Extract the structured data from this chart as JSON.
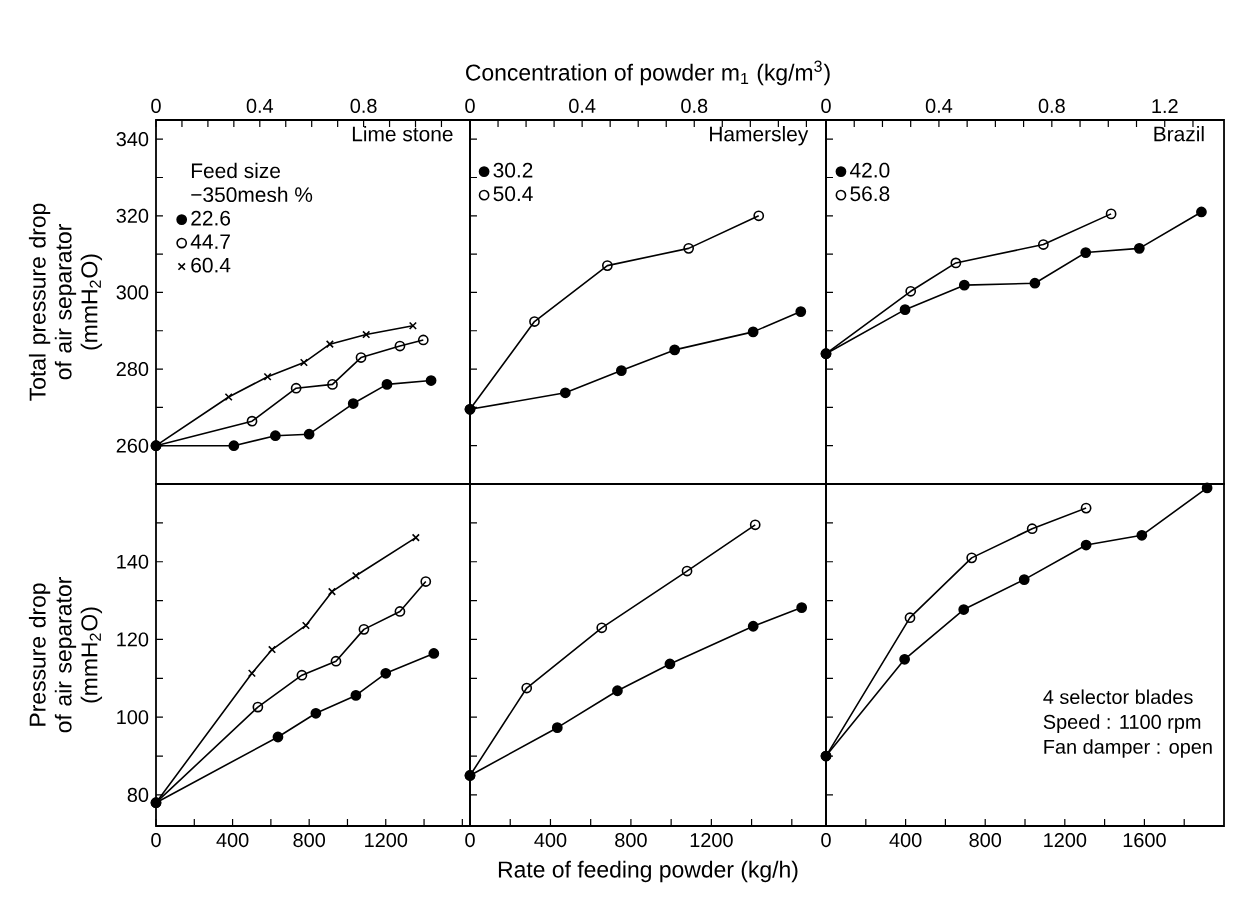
{
  "chart_data": [
    {
      "type": "line",
      "title": "Lime stone",
      "ylabel": "Total pressure drop of air separator (mmH$_{2}$O)",
      "legend_title": "Feed size −350mesh %",
      "legend": "top left",
      "xlim": [
        0,
        1.21
      ],
      "xticks": [
        0,
        {
          "value": 0.1,
          "label": null
        },
        {
          "value": 0.2,
          "label": null
        },
        {
          "value": 0.3,
          "label": null
        },
        0.4,
        {
          "value": 0.5,
          "label": null
        },
        {
          "value": 0.6,
          "label": null
        },
        {
          "value": 0.7,
          "label": null
        },
        0.8,
        {
          "value": 0.9,
          "label": null
        },
        {
          "value": 1.0,
          "label": null
        },
        {
          "value": 1.1,
          "label": null
        }
      ],
      "ylim": [
        250,
        345
      ],
      "yticks": [
        260,
        {
          "value": 270,
          "label": null
        },
        280,
        {
          "value": 290,
          "label": null
        },
        300,
        {
          "value": 310,
          "label": null
        },
        320,
        {
          "value": 330,
          "label": null
        },
        340
      ],
      "series": [
        {
          "name": "22.6",
          "color": "#000000",
          "marker": "circle",
          "x": [
            0,
            0.3,
            0.46,
            0.59,
            0.76,
            0.89,
            1.06
          ],
          "values": [
            260,
            260,
            262.6,
            263,
            271,
            276,
            277
          ]
        },
        {
          "name": "44.7",
          "color": "#000000",
          "marker": "circle open",
          "x": [
            0,
            0.37,
            0.54,
            0.68,
            0.79,
            0.94,
            1.03
          ],
          "values": [
            260,
            266.4,
            275,
            276,
            283,
            286,
            287.6
          ]
        },
        {
          "name": "60.4",
          "color": "#000000",
          "marker": "cross",
          "x": [
            0,
            0.28,
            0.43,
            0.57,
            0.67,
            0.81,
            0.99
          ],
          "values": [
            260,
            272.7,
            278,
            281.7,
            286.5,
            289,
            291.3
          ]
        }
      ]
    },
    {
      "type": "line",
      "title": "Hamersley",
      "xlabel": "Concentration of powder  m$_{1}$ (kg/m$^{3}$)",
      "legend": "top left",
      "tick_labels": "x",
      "xlim": [
        0,
        1.27
      ],
      "xticks": [
        0,
        {
          "value": 0.1,
          "label": null
        },
        {
          "value": 0.2,
          "label": null
        },
        {
          "value": 0.3,
          "label": null
        },
        0.4,
        {
          "value": 0.5,
          "label": null
        },
        {
          "value": 0.6,
          "label": null
        },
        {
          "value": 0.7,
          "label": null
        },
        0.8,
        {
          "value": 0.9,
          "label": null
        },
        {
          "value": 1.0,
          "label": null
        },
        {
          "value": 1.1,
          "label": null
        },
        {
          "value": 1.2,
          "label": null
        }
      ],
      "ylim": [
        250,
        345
      ],
      "series": [
        {
          "name": "30.2",
          "color": "#000000",
          "marker": "circle",
          "x": [
            0,
            0.34,
            0.54,
            0.73,
            1.01,
            1.18
          ],
          "values": [
            269.5,
            273.8,
            279.6,
            285,
            289.7,
            295
          ]
        },
        {
          "name": "50.4",
          "color": "#000000",
          "marker": "circle open",
          "x": [
            0,
            0.23,
            0.49,
            0.78,
            1.03
          ],
          "values": [
            269.5,
            292.4,
            307,
            311.5,
            320
          ]
        }
      ]
    },
    {
      "type": "line",
      "title": "Brazil",
      "legend": "top left",
      "tick_labels": "x",
      "xlim": [
        0,
        1.41
      ],
      "xticks": [
        0,
        {
          "value": 0.1,
          "label": null
        },
        {
          "value": 0.2,
          "label": null
        },
        {
          "value": 0.3,
          "label": null
        },
        0.4,
        {
          "value": 0.5,
          "label": null
        },
        {
          "value": 0.6,
          "label": null
        },
        {
          "value": 0.7,
          "label": null
        },
        0.8,
        {
          "value": 0.9,
          "label": null
        },
        {
          "value": 1.0,
          "label": null
        },
        {
          "value": 1.1,
          "label": null
        },
        1.2,
        {
          "value": 1.3,
          "label": null
        }
      ],
      "ylim": [
        250,
        345
      ],
      "series": [
        {
          "name": "42.0",
          "color": "#000000",
          "marker": "circle",
          "x": [
            0,
            0.28,
            0.49,
            0.74,
            0.92,
            1.11,
            1.33
          ],
          "values": [
            284,
            295.5,
            301.9,
            302.4,
            310.4,
            311.5,
            321
          ]
        },
        {
          "name": "56.8",
          "color": "#000000",
          "marker": "circle open",
          "x": [
            0,
            0.3,
            0.46,
            0.77,
            1.01
          ],
          "values": [
            284,
            300.3,
            307.7,
            312.5,
            320.5
          ]
        }
      ]
    },
    {
      "type": "line",
      "ylabel": "Pressure drop of air separator (mmH$_{2}$O)",
      "xlim": [
        0,
        1640
      ],
      "xticks": [
        0,
        {
          "value": 200,
          "label": null
        },
        400,
        {
          "value": 600,
          "label": null
        },
        800,
        {
          "value": 1000,
          "label": null
        },
        1200,
        {
          "value": 1400,
          "label": null
        },
        {
          "value": 1600,
          "label": null
        }
      ],
      "ylim": [
        72,
        160
      ],
      "yticks": [
        80,
        {
          "value": 90,
          "label": null
        },
        100,
        {
          "value": 110,
          "label": null
        },
        120,
        {
          "value": 130,
          "label": null
        },
        140,
        {
          "value": 150,
          "label": null
        }
      ],
      "series": [
        {
          "color": "#000000",
          "marker": "circle",
          "x": [
            0,
            637,
            835,
            1044,
            1200,
            1451
          ],
          "values": [
            78,
            94.9,
            101,
            105.6,
            111.3,
            116.4
          ]
        },
        {
          "color": "#000000",
          "marker": "circle open",
          "x": [
            0,
            532,
            762,
            940,
            1086,
            1274,
            1409
          ],
          "values": [
            78,
            102.6,
            110.8,
            114.4,
            122.6,
            127.2,
            134.9
          ]
        },
        {
          "color": "#000000",
          "marker": "cross",
          "x": [
            0,
            501,
            606,
            783,
            919,
            1044,
            1357
          ],
          "values": [
            78,
            111.3,
            117.4,
            123.6,
            132.3,
            136.4,
            146.2
          ]
        }
      ]
    },
    {
      "type": "line",
      "xlabel": "Rate of feeding powder (kg/h)",
      "tick_labels": "x",
      "xlim": [
        0,
        1770
      ],
      "xticks": [
        0,
        {
          "value": 200,
          "label": null
        },
        400,
        {
          "value": 600,
          "label": null
        },
        800,
        {
          "value": 1000,
          "label": null
        },
        1200,
        {
          "value": 1400,
          "label": null
        },
        {
          "value": 1600,
          "label": null
        }
      ],
      "ylim": [
        72,
        160
      ],
      "series": [
        {
          "color": "#000000",
          "marker": "circle",
          "x": [
            0,
            434,
            733,
            994,
            1408,
            1649
          ],
          "values": [
            85,
            97.3,
            106.8,
            113.7,
            123.4,
            128.2
          ]
        },
        {
          "color": "#000000",
          "marker": "circle open",
          "x": [
            0,
            282,
            655,
            1079,
            1418
          ],
          "values": [
            85,
            107.5,
            123,
            137.6,
            149.5
          ]
        }
      ]
    },
    {
      "type": "line",
      "tick_labels": "x",
      "annotations": [
        "4 selector blades",
        "Speed : 1100 rpm",
        "Fan damper : open"
      ],
      "xlim": [
        0,
        2000
      ],
      "xticks": [
        0,
        {
          "value": 200,
          "label": null
        },
        400,
        {
          "value": 600,
          "label": null
        },
        800,
        {
          "value": 1000,
          "label": null
        },
        1200,
        {
          "value": 1400,
          "label": null
        },
        1600,
        {
          "value": 1800,
          "label": null
        }
      ],
      "ylim": [
        72,
        160
      ],
      "series": [
        {
          "color": "#000000",
          "marker": "circle",
          "x": [
            0,
            395,
            692,
            996,
            1307,
            1587,
            1915
          ],
          "values": [
            90,
            114.9,
            127.7,
            135.4,
            144.3,
            146.8,
            159
          ]
        },
        {
          "color": "#000000",
          "marker": "circle open",
          "x": [
            0,
            422,
            732,
            1036,
            1307
          ],
          "values": [
            90,
            125.6,
            141,
            148.5,
            153.8
          ]
        }
      ]
    }
  ]
}
